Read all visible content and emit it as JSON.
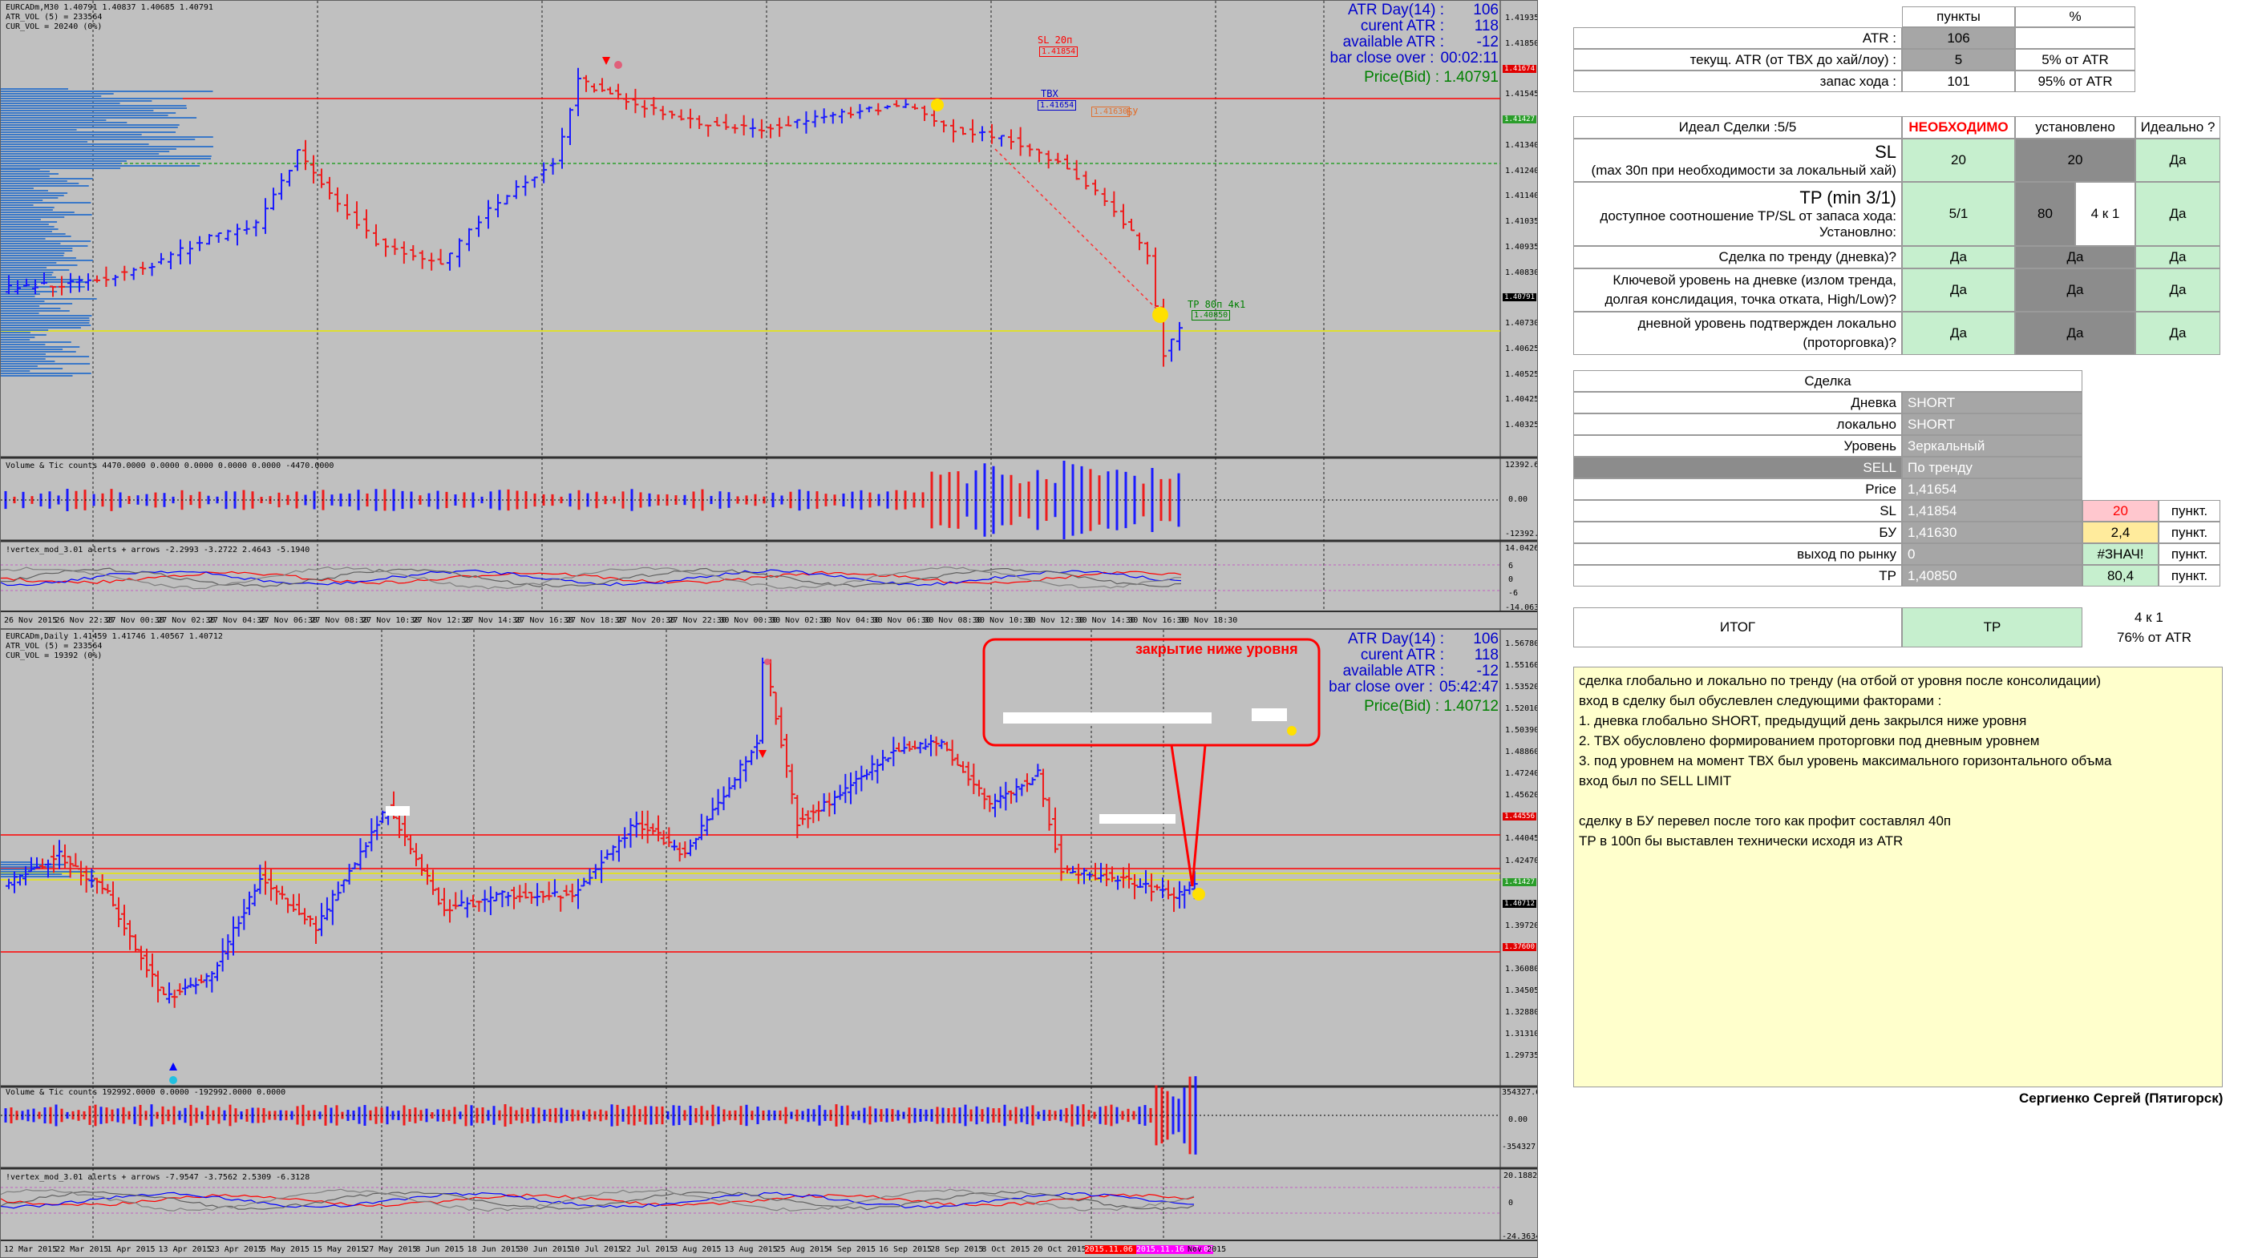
{
  "top_chart": {
    "header": [
      "EURCADm,M30  1.40791 1.40837 1.40685 1.40791",
      "ATR_VOL (5) = 233564",
      "CUR_VOL = 20240 (0%)"
    ],
    "atr_info": [
      {
        "k": "ATR Day(14) :",
        "v": "106"
      },
      {
        "k": "curent ATR :",
        "v": "118"
      },
      {
        "k": "available ATR :",
        "v": "-12"
      },
      {
        "k": "bar close over :",
        "v": "00:02:11"
      }
    ],
    "price_bid": "Price(Bid) :   1.40791",
    "annotations": {
      "sl": "SL 20п",
      "sl_price": "1.41854",
      "tvh": "ТВХ",
      "tvh_price": "1.41654",
      "bu_price": "1.41630",
      "bu": "БУ",
      "tp": "TP 80п 4к1",
      "tp_price": "1.40850"
    },
    "price_axis": [
      "1.41935",
      "1.41850",
      "1.41674",
      "1.41545",
      "1.41427",
      "1.41340",
      "1.41240",
      "1.41140",
      "1.41035",
      "1.40935",
      "1.40830",
      "1.40791",
      "1.40730",
      "1.40625",
      "1.40525",
      "1.40425",
      "1.40325"
    ],
    "volume_label": "Volume & Tic counts 4470.0000 0.0000 0.0000 0.0000 0.0000 -4470.0000",
    "volume_axis": [
      "12392.6",
      "0.00",
      "-12392.6"
    ],
    "vertex_label": "!vertex_mod_3.01 alerts + arrows -2.2993 -3.2722 2.4643 -5.1940",
    "vertex_axis": [
      "14.0426",
      "6",
      "0",
      "-6",
      "-14.0632"
    ],
    "dates": [
      "26 Nov 2015",
      "26 Nov 22:30",
      "27 Nov 00:30",
      "27 Nov 02:30",
      "27 Nov 04:30",
      "27 Nov 06:30",
      "27 Nov 08:30",
      "27 Nov 10:30",
      "27 Nov 12:30",
      "27 Nov 14:30",
      "27 Nov 16:30",
      "27 Nov 18:30",
      "27 Nov 20:30",
      "27 Nov 22:30",
      "30 Nov 00:30",
      "30 Nov 02:30",
      "30 Nov 04:30",
      "30 Nov 06:30",
      "30 Nov 08:30",
      "30 Nov 10:30",
      "30 Nov 12:30",
      "30 Nov 14:30",
      "30 Nov 16:30",
      "30 Nov 18:30"
    ]
  },
  "bottom_chart": {
    "header": [
      "EURCADm,Daily  1.41459 1.41746 1.40567 1.40712",
      "ATR_VOL (5) = 233564",
      "CUR_VOL = 19392 (0%)"
    ],
    "atr_info": [
      {
        "k": "ATR Day(14) :",
        "v": "106"
      },
      {
        "k": "curent ATR :",
        "v": "118"
      },
      {
        "k": "available ATR :",
        "v": "-12"
      },
      {
        "k": "bar close over :",
        "v": "05:42:47"
      }
    ],
    "price_bid": "Price(Bid) :   1.40712",
    "callout": "закрытие ниже уровня",
    "price_axis": [
      "1.56780",
      "1.55160",
      "1.53520",
      "1.52010",
      "1.50390",
      "1.48860",
      "1.47240",
      "1.45620",
      "1.44556",
      "1.44045",
      "1.42470",
      "1.41427",
      "1.40712",
      "1.39720",
      "1.37600",
      "1.36080",
      "1.34505",
      "1.32880",
      "1.31310",
      "1.29735"
    ],
    "volume_label": "Volume & Tic counts 192992.0000 0.0000 -192992.0000 0.0000",
    "volume_axis": [
      "354327.6",
      "0.00",
      "-354327.6"
    ],
    "vertex_label": "!vertex_mod_3.01 alerts + arrows -7.9547 -3.7562 2.5309 -6.3128",
    "vertex_axis": [
      "20.1882",
      "0",
      "-24.3634"
    ],
    "dates": [
      "12 Mar 2015",
      "22 Mar 2015",
      "1 Apr 2015",
      "13 Apr 2015",
      "23 Apr 2015",
      "5 May 2015",
      "15 May 2015",
      "27 May 2015",
      "8 Jun 2015",
      "18 Jun 2015",
      "30 Jun 2015",
      "10 Jul 2015",
      "22 Jul 2015",
      "3 Aug 2015",
      "13 Aug 2015",
      "25 Aug 2015",
      "4 Sep 2015",
      "16 Sep 2015",
      "28 Sep 2015",
      "8 Oct 2015",
      "20 Oct 2015",
      "2015.11.06 22:00",
      "2015.11.16 17:00",
      "Nov 2015"
    ]
  },
  "sheet": {
    "hdr_points": "пункты",
    "hdr_pct": "%",
    "atr_label": "ATR :",
    "atr_val": "106",
    "cur_atr_label": "текущ. ATR (от ТВХ до хай/лоу) :",
    "cur_atr_val": "5",
    "cur_atr_pct": "5% от ATR",
    "reserve_label": "запас хода :",
    "reserve_val": "101",
    "reserve_pct": "95% от ATR",
    "ideal_hdr": "Идеал Сделки :5/5",
    "need_hdr": "НЕОБХОДИМО",
    "set_hdr": "установлено",
    "ideal_q_hdr": "Идеально ?",
    "sl_title": "SL",
    "sl_desc": "(max 30п при необходимости за локальный хай)",
    "sl_need": "20",
    "sl_set": "20",
    "sl_ok": "Да",
    "tp_title": "TP (min 3/1)",
    "tp_desc1": "доступное соотношение TP/SL от запаса хода:",
    "tp_desc2": "Установлно:",
    "tp_need": "5/1",
    "tp_set": "80",
    "tp_ratio": "4 к 1",
    "tp_ok": "Да",
    "trend_q": "Сделка по тренду (дневка)?",
    "trend_need": "Да",
    "trend_set": "Да",
    "trend_ok": "Да",
    "key_q": "Ключевой уровень на дневке (излом тренда, долгая конслидация, точка отката, High/Low)?",
    "key_need": "Да",
    "key_set": "Да",
    "key_ok": "Да",
    "local_q": "дневной уровень подтвержден локально (проторговка)?",
    "local_need": "Да",
    "local_set": "Да",
    "local_ok": "Да",
    "deal_hdr": "Сделка",
    "rows": [
      {
        "k": "Дневка",
        "v": "SHORT"
      },
      {
        "k": "локально",
        "v": "SHORT"
      },
      {
        "k": "Уровень",
        "v": "Зеркальный"
      },
      {
        "k": "SELL",
        "v": "По тренду"
      },
      {
        "k": "Price",
        "v": "1,41654"
      },
      {
        "k": "SL",
        "v": "1,41854",
        "pts": "20",
        "unit": "пункт."
      },
      {
        "k": "БУ",
        "v": "1,41630",
        "pts": "2,4",
        "unit": "пункт."
      },
      {
        "k": "выход по рынку",
        "v": "0",
        "pts": "#ЗНАЧ!",
        "unit": "пункт."
      },
      {
        "k": "TP",
        "v": "1,40850",
        "pts": "80,4",
        "unit": "пункт."
      }
    ],
    "result_label": "ИТОГ",
    "result_val": "TP",
    "result_ratio": "4 к 1",
    "result_pct": "76% от ATR",
    "notes": [
      "сделка глобально и локально по тренду (на отбой от уровня после консолидации)",
      "вход в сделку был обуслевлен следующими факторами :",
      "1. дневка глобально SHORT, предыдущий день закрылся ниже уровня",
      "2. ТВХ обусловлено формированием проторговки под дневным уровнем",
      "3. под уровнем на момент ТВХ был уровень максимального горизонтального объма",
      "вход был по SELL LIMIT",
      "",
      "сделку в БУ  перевел после того как профит составлял 40п",
      "TP в 100п бы выставлен технически исходя из ATR"
    ],
    "author": "Сергиенко Сергей (Пятигорск)"
  }
}
